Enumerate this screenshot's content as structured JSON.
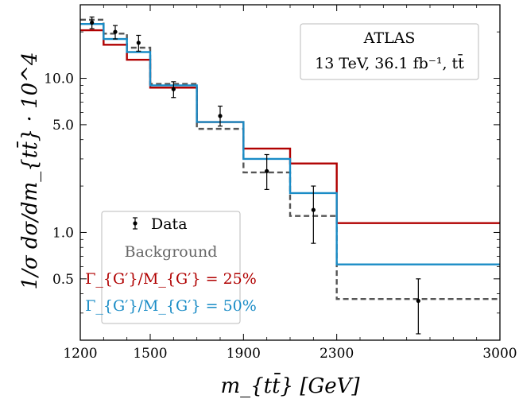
{
  "chart_data": {
    "type": "line",
    "drawstyle": "steps",
    "x_edges": [
      1200,
      1300,
      1400,
      1500,
      1700,
      1900,
      2100,
      2300,
      3000
    ],
    "xlim": [
      1200,
      3000
    ],
    "ylim": [
      0.2,
      30
    ],
    "yscale": "log",
    "xlabel": "m_{tt̄} [GeV]",
    "ylabel": "1/σ dσ/dm_{tt̄} · 10^4",
    "x_ticks": [
      1200,
      1500,
      1900,
      2300,
      3000
    ],
    "x_tick_labels": [
      "1200",
      "1500",
      "1900",
      "2300",
      "3000"
    ],
    "y_ticks": [
      0.5,
      1.0,
      5.0,
      10.0
    ],
    "y_tick_labels": [
      "0.5",
      "1.0",
      "5.0",
      "10.0"
    ],
    "series": [
      {
        "name": "Background",
        "color": "#555555",
        "dashed": true,
        "values": [
          24.0,
          19.5,
          15.8,
          9.2,
          4.7,
          2.45,
          1.28,
          0.37
        ]
      },
      {
        "name": "Γ_{G′}/M_{G′} = 25%",
        "color": "#b00000",
        "dashed": false,
        "values": [
          20.5,
          16.5,
          13.2,
          8.7,
          5.2,
          3.5,
          2.8,
          1.15
        ]
      },
      {
        "name": "Γ_{G′}/M_{G′} = 50%",
        "color": "#1a8cc6",
        "dashed": false,
        "values": [
          22.5,
          18.0,
          14.8,
          9.0,
          5.2,
          3.0,
          1.8,
          0.62
        ]
      }
    ],
    "data_points": {
      "name": "Data",
      "x": [
        1250,
        1350,
        1450,
        1600,
        1800,
        2000,
        2200,
        2650
      ],
      "y": [
        23.0,
        20.0,
        17.0,
        8.5,
        5.7,
        2.5,
        1.4,
        0.36
      ],
      "yerr_low": [
        21.0,
        18.0,
        15.0,
        7.5,
        4.9,
        1.9,
        0.85,
        0.22
      ],
      "yerr_high": [
        25.0,
        22.0,
        19.0,
        9.5,
        6.6,
        3.2,
        2.0,
        0.5
      ]
    },
    "legend_position": "bottom-left",
    "annotation": {
      "line1": "ATLAS",
      "line2": "13 TeV, 36.1 fb⁻¹, tt̄",
      "position": "top-right"
    }
  }
}
